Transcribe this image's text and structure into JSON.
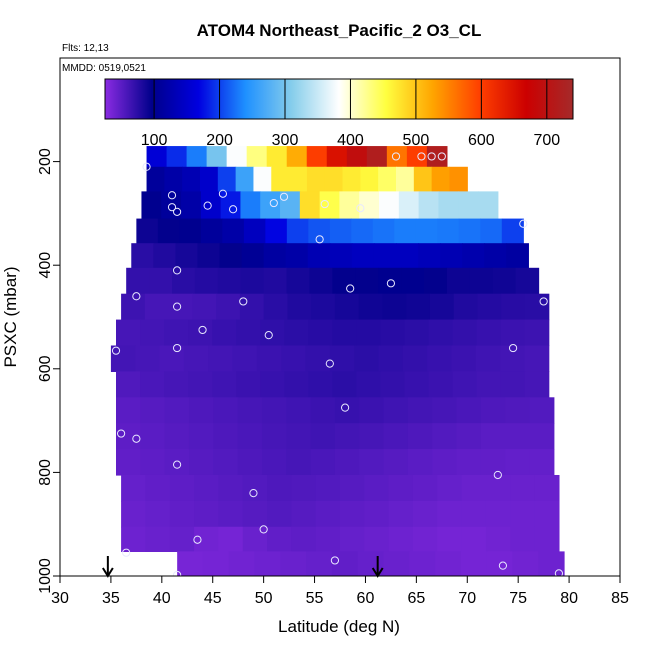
{
  "header": {
    "title": "ATOM4 Northeast_Pacific_2 O3_CL",
    "flights_note": "Flts: 12,13",
    "dates_note": "MMDD: 0519,0521"
  },
  "chart_data": {
    "type": "heatmap",
    "title": "ATOM4 Northeast_Pacific_2 O3_CL",
    "xlabel": "Latitude (deg N)",
    "ylabel": "PSXC (mbar)",
    "xlim": [
      30,
      85
    ],
    "ylim": [
      1000,
      0
    ],
    "x_ticks": [
      "30",
      "35",
      "40",
      "45",
      "50",
      "55",
      "60",
      "65",
      "70",
      "75",
      "80",
      "85"
    ],
    "y_ticks": [
      "200",
      "400",
      "600",
      "800",
      "1000"
    ],
    "colorbar": {
      "min": 25,
      "max": 740,
      "ticks": [
        "100",
        "200",
        "300",
        "400",
        "500",
        "600",
        "700"
      ],
      "gradient": [
        "#8a2be2",
        "#00008b",
        "#0000e0",
        "#1e90ff",
        "#87ceeb",
        "#ffffff",
        "#ffff40",
        "#ffa500",
        "#ff4000",
        "#cc0000",
        "#a52a2a"
      ]
    },
    "layers": [
      {
        "p": 190,
        "lat0": 38.5,
        "lat1": 68.0,
        "values": [
          160,
          190,
          230,
          300,
          380,
          430,
          470,
          520,
          600,
          650,
          690,
          720,
          560,
          600,
          720
        ]
      },
      {
        "p": 230,
        "lat0": 38.5,
        "lat1": 70.0,
        "values": [
          110,
          120,
          130,
          150,
          200,
          260,
          380,
          470,
          470,
          480,
          480,
          470,
          460,
          440,
          420,
          500,
          530,
          540
        ]
      },
      {
        "p": 285,
        "lat0": 38.0,
        "lat1": 73.0,
        "values": [
          100,
          110,
          120,
          150,
          180,
          230,
          260,
          280,
          480,
          450,
          420,
          400,
          380,
          360,
          340,
          330,
          330,
          330
        ]
      },
      {
        "p": 335,
        "lat0": 37.5,
        "lat1": 75.5,
        "values": [
          90,
          95,
          100,
          110,
          120,
          140,
          170,
          200,
          210,
          215,
          220,
          225,
          230,
          230,
          228,
          225,
          220,
          200
        ]
      },
      {
        "p": 380,
        "lat0": 37.0,
        "lat1": 76.0,
        "values": [
          75,
          80,
          85,
          90,
          95,
          105,
          115,
          120,
          130,
          135,
          140,
          140,
          140,
          135,
          130,
          125,
          120,
          115
        ]
      },
      {
        "p": 430,
        "lat0": 36.5,
        "lat1": 77.0,
        "values": [
          70,
          70,
          75,
          78,
          80,
          82,
          80,
          85,
          90,
          95,
          95,
          100,
          100,
          95,
          90,
          90,
          88,
          85
        ]
      },
      {
        "p": 480,
        "lat0": 36.0,
        "lat1": 78.0,
        "values": [
          65,
          60,
          60,
          62,
          65,
          70,
          75,
          80,
          82,
          85,
          88,
          90,
          88,
          85,
          80,
          78,
          76,
          75
        ]
      },
      {
        "p": 530,
        "lat0": 35.5,
        "lat1": 78.0,
        "values": [
          60,
          62,
          64,
          65,
          68,
          70,
          72,
          74,
          76,
          78,
          78,
          76,
          74,
          72,
          70,
          68,
          66,
          65
        ]
      },
      {
        "p": 580,
        "lat0": 35.0,
        "lat1": 78.0,
        "values": [
          62,
          60,
          58,
          60,
          62,
          64,
          66,
          68,
          70,
          72,
          74,
          72,
          70,
          68,
          66,
          64,
          62,
          60
        ]
      },
      {
        "p": 630,
        "lat0": 35.5,
        "lat1": 78.0,
        "values": [
          55,
          58,
          60,
          62,
          64,
          66,
          68,
          70,
          72,
          74,
          72,
          70,
          68,
          66,
          64,
          62,
          62,
          60
        ]
      },
      {
        "p": 680,
        "lat0": 35.5,
        "lat1": 78.5,
        "values": [
          50,
          52,
          54,
          56,
          58,
          60,
          62,
          64,
          66,
          68,
          66,
          64,
          62,
          60,
          58,
          56,
          55,
          54
        ]
      },
      {
        "p": 730,
        "lat0": 35.5,
        "lat1": 78.5,
        "values": [
          48,
          50,
          52,
          54,
          56,
          58,
          60,
          62,
          64,
          62,
          60,
          58,
          56,
          54,
          52,
          50,
          50,
          50
        ]
      },
      {
        "p": 780,
        "lat0": 35.5,
        "lat1": 78.5,
        "values": [
          46,
          48,
          50,
          52,
          54,
          56,
          58,
          60,
          58,
          56,
          54,
          52,
          50,
          48,
          46,
          46,
          45,
          45
        ]
      },
      {
        "p": 830,
        "lat0": 36.0,
        "lat1": 79.0,
        "values": [
          44,
          46,
          48,
          50,
          52,
          54,
          56,
          55,
          54,
          52,
          50,
          48,
          46,
          44,
          42,
          42,
          42,
          42
        ]
      },
      {
        "p": 880,
        "lat0": 36.0,
        "lat1": 79.0,
        "values": [
          42,
          44,
          46,
          48,
          50,
          52,
          54,
          52,
          50,
          48,
          46,
          44,
          42,
          40,
          40,
          40,
          40,
          40
        ]
      },
      {
        "p": 930,
        "lat0": 36.0,
        "lat1": 79.0,
        "values": [
          40,
          42,
          44,
          38,
          36,
          42,
          46,
          48,
          46,
          44,
          42,
          40,
          38,
          36,
          36,
          38,
          40,
          40
        ]
      },
      {
        "p": 975,
        "lat0": 41.5,
        "lat1": 79.5,
        "values": [
          35,
          36,
          38,
          40,
          42,
          44,
          46,
          44,
          42,
          40,
          38,
          36,
          36,
          38,
          40
        ]
      }
    ],
    "white_gap": {
      "lat0": 35.5,
      "lat1": 41.5,
      "p0": 955,
      "p1": 1000
    },
    "points": [
      {
        "lat": 38.5,
        "p": 210
      },
      {
        "lat": 41.0,
        "p": 265
      },
      {
        "lat": 41.0,
        "p": 288
      },
      {
        "lat": 41.5,
        "p": 297
      },
      {
        "lat": 44.5,
        "p": 285
      },
      {
        "lat": 46.0,
        "p": 262
      },
      {
        "lat": 47.0,
        "p": 292
      },
      {
        "lat": 51.0,
        "p": 280
      },
      {
        "lat": 52.0,
        "p": 268
      },
      {
        "lat": 56.0,
        "p": 282
      },
      {
        "lat": 59.5,
        "p": 290
      },
      {
        "lat": 63.0,
        "p": 190
      },
      {
        "lat": 65.5,
        "p": 190
      },
      {
        "lat": 66.5,
        "p": 190
      },
      {
        "lat": 67.5,
        "p": 190
      },
      {
        "lat": 55.5,
        "p": 350
      },
      {
        "lat": 75.5,
        "p": 320
      },
      {
        "lat": 41.5,
        "p": 410
      },
      {
        "lat": 37.5,
        "p": 460
      },
      {
        "lat": 41.5,
        "p": 480
      },
      {
        "lat": 48.0,
        "p": 470
      },
      {
        "lat": 58.5,
        "p": 445
      },
      {
        "lat": 62.5,
        "p": 435
      },
      {
        "lat": 77.5,
        "p": 470
      },
      {
        "lat": 44.0,
        "p": 525
      },
      {
        "lat": 50.5,
        "p": 535
      },
      {
        "lat": 41.5,
        "p": 560
      },
      {
        "lat": 35.5,
        "p": 565
      },
      {
        "lat": 74.5,
        "p": 560
      },
      {
        "lat": 56.5,
        "p": 590
      },
      {
        "lat": 58.0,
        "p": 675
      },
      {
        "lat": 36.0,
        "p": 725
      },
      {
        "lat": 37.5,
        "p": 735
      },
      {
        "lat": 41.5,
        "p": 785
      },
      {
        "lat": 73.0,
        "p": 805
      },
      {
        "lat": 49.0,
        "p": 840
      },
      {
        "lat": 50.0,
        "p": 910
      },
      {
        "lat": 43.5,
        "p": 930
      },
      {
        "lat": 36.5,
        "p": 955
      },
      {
        "lat": 57.0,
        "p": 970
      },
      {
        "lat": 73.5,
        "p": 980
      },
      {
        "lat": 41.5,
        "p": 998
      },
      {
        "lat": 79.0,
        "p": 995
      }
    ],
    "arrows": [
      {
        "lat": 34.7
      },
      {
        "lat": 61.2
      }
    ]
  }
}
